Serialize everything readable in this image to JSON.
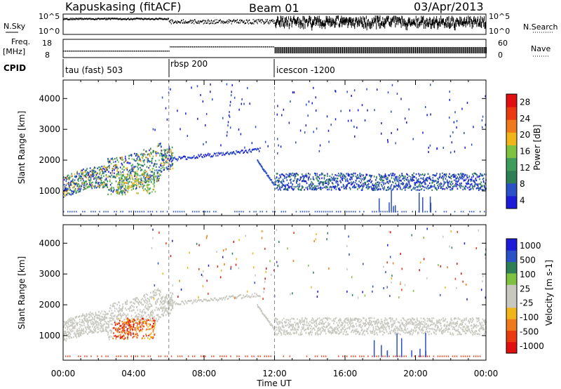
{
  "header": {
    "radar": "Kapuskasing (fitACF)",
    "beam": "Beam 01",
    "date": "03/Apr/2013"
  },
  "status": {
    "nsky_label": "N.Sky",
    "nsky_ticks": [
      "10^5",
      "10^0"
    ],
    "nsearch_label": "N.Search",
    "freq_label": "Freq.",
    "freq_unit": "[MHz]",
    "freq_ticks": [
      "18",
      "8"
    ],
    "nave_label": "Nave",
    "nave_ticks": [
      "60",
      "0"
    ],
    "cpid_label": "CPID",
    "cpid_segments": [
      {
        "label": "tau (fast) 503",
        "start_hour": 0
      },
      {
        "label": "rbsp 200",
        "start_hour": 6
      },
      {
        "label": "icescon -1200",
        "start_hour": 12
      }
    ]
  },
  "colors": {
    "power": [
      "#1c1cd8",
      "#2b50c8",
      "#2e7f56",
      "#3f9d5a",
      "#7fc242",
      "#f1b51c",
      "#f07a1b",
      "#ea3b10",
      "#e01010"
    ],
    "velocity": [
      "#e01010",
      "#ea3b10",
      "#f07a1b",
      "#f1b51c",
      "#c8c8c0",
      "#c8c8c0",
      "#7fc242",
      "#2e7f56",
      "#2b50c8",
      "#1c1cd8"
    ]
  },
  "chart_data": [
    {
      "type": "heatmap",
      "title": "Power",
      "xlabel": "Time UT",
      "ylabel": "Slant Range [km]",
      "xlim": [
        0,
        24
      ],
      "ylim": [
        200,
        4600
      ],
      "x_ticks": [
        "00:00",
        "04:00",
        "08:00",
        "12:00",
        "16:00",
        "20:00",
        "00:00"
      ],
      "y_ticks": [
        "1000",
        "2000",
        "3000",
        "4000"
      ],
      "colorbar": {
        "label": "Power [dB]",
        "ticks": [
          "28",
          "24",
          "20",
          "16",
          "12",
          "8",
          "4"
        ],
        "range": [
          0,
          30
        ]
      },
      "series": [
        {
          "x": [
            0,
            1,
            2,
            3,
            4,
            5,
            6
          ],
          "y": [
            1200,
            1300,
            1400,
            1550,
            1750,
            1950,
            2050
          ],
          "values": [
            14,
            16,
            12,
            20,
            18,
            15,
            10
          ]
        },
        {
          "x": [
            6,
            7,
            8,
            9,
            10,
            11
          ],
          "y": [
            2100,
            2150,
            2200,
            2250,
            2300,
            2350
          ],
          "values": [
            6,
            6,
            5,
            6,
            6,
            5
          ]
        },
        {
          "x": [
            12,
            14,
            16,
            18,
            20,
            22,
            24
          ],
          "y": [
            1350,
            1350,
            1350,
            1350,
            1350,
            1350,
            1350
          ],
          "values": [
            8,
            8,
            7,
            8,
            8,
            7,
            8
          ]
        }
      ]
    },
    {
      "type": "heatmap",
      "title": "Velocity",
      "xlabel": "Time UT",
      "ylabel": "Slant Range [km]",
      "xlim": [
        0,
        24
      ],
      "ylim": [
        200,
        4600
      ],
      "x_ticks": [
        "00:00",
        "04:00",
        "08:00",
        "12:00",
        "16:00",
        "20:00",
        "00:00"
      ],
      "y_ticks": [
        "1000",
        "2000",
        "3000",
        "4000"
      ],
      "colorbar": {
        "label": "Velocity [m s-1]",
        "ticks": [
          "1000",
          "500",
          "100",
          "25",
          "-25",
          "-100",
          "-500",
          "-1000"
        ]
      },
      "series": [
        {
          "x": [
            0,
            2,
            4,
            6,
            8,
            10,
            12
          ],
          "y": [
            1200,
            1500,
            1900,
            2050,
            2200,
            2300,
            1400
          ],
          "values": [
            0,
            0,
            0,
            0,
            0,
            0,
            0
          ]
        },
        {
          "x": [
            3,
            3.5,
            4,
            4.5,
            5
          ],
          "y": [
            1000,
            1200,
            1350,
            1250,
            1100
          ],
          "values": [
            -800,
            -600,
            -500,
            -300,
            -100
          ]
        },
        {
          "x": [
            12,
            16,
            20,
            24
          ],
          "y": [
            1350,
            1350,
            1350,
            1350
          ],
          "values": [
            0,
            0,
            0,
            0
          ]
        }
      ]
    }
  ]
}
